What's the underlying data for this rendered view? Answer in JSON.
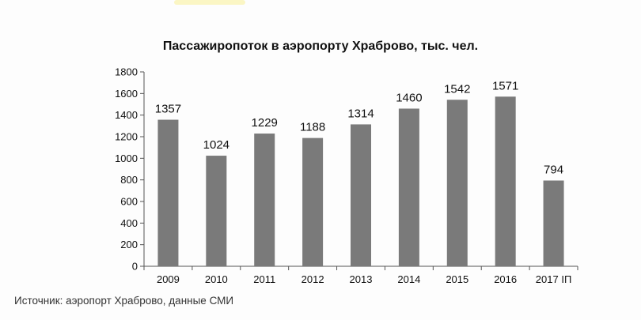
{
  "source_note": "Источник: аэропорт Храброво, данные СМИ",
  "colors": {
    "bar": "#7a7a7a",
    "axis": "#555555",
    "grid": "#d9d9d9"
  },
  "chart_data": {
    "type": "bar",
    "title": "Пассажиропоток в аэропорту Храброво, тыс. чел.",
    "xlabel": "",
    "ylabel": "",
    "categories": [
      "2009",
      "2010",
      "2011",
      "2012",
      "2013",
      "2014",
      "2015",
      "2016",
      "2017 IП"
    ],
    "values": [
      1357,
      1024,
      1229,
      1188,
      1314,
      1460,
      1542,
      1571,
      794
    ],
    "data_labels": [
      "1357",
      "1024",
      "1229",
      "1188",
      "1314",
      "1460",
      "1542",
      "1571",
      "794"
    ],
    "ylim": [
      0,
      1800
    ],
    "yticks": [
      0,
      200,
      400,
      600,
      800,
      1000,
      1200,
      1400,
      1600,
      1800
    ],
    "grid": false,
    "legend": "none"
  }
}
